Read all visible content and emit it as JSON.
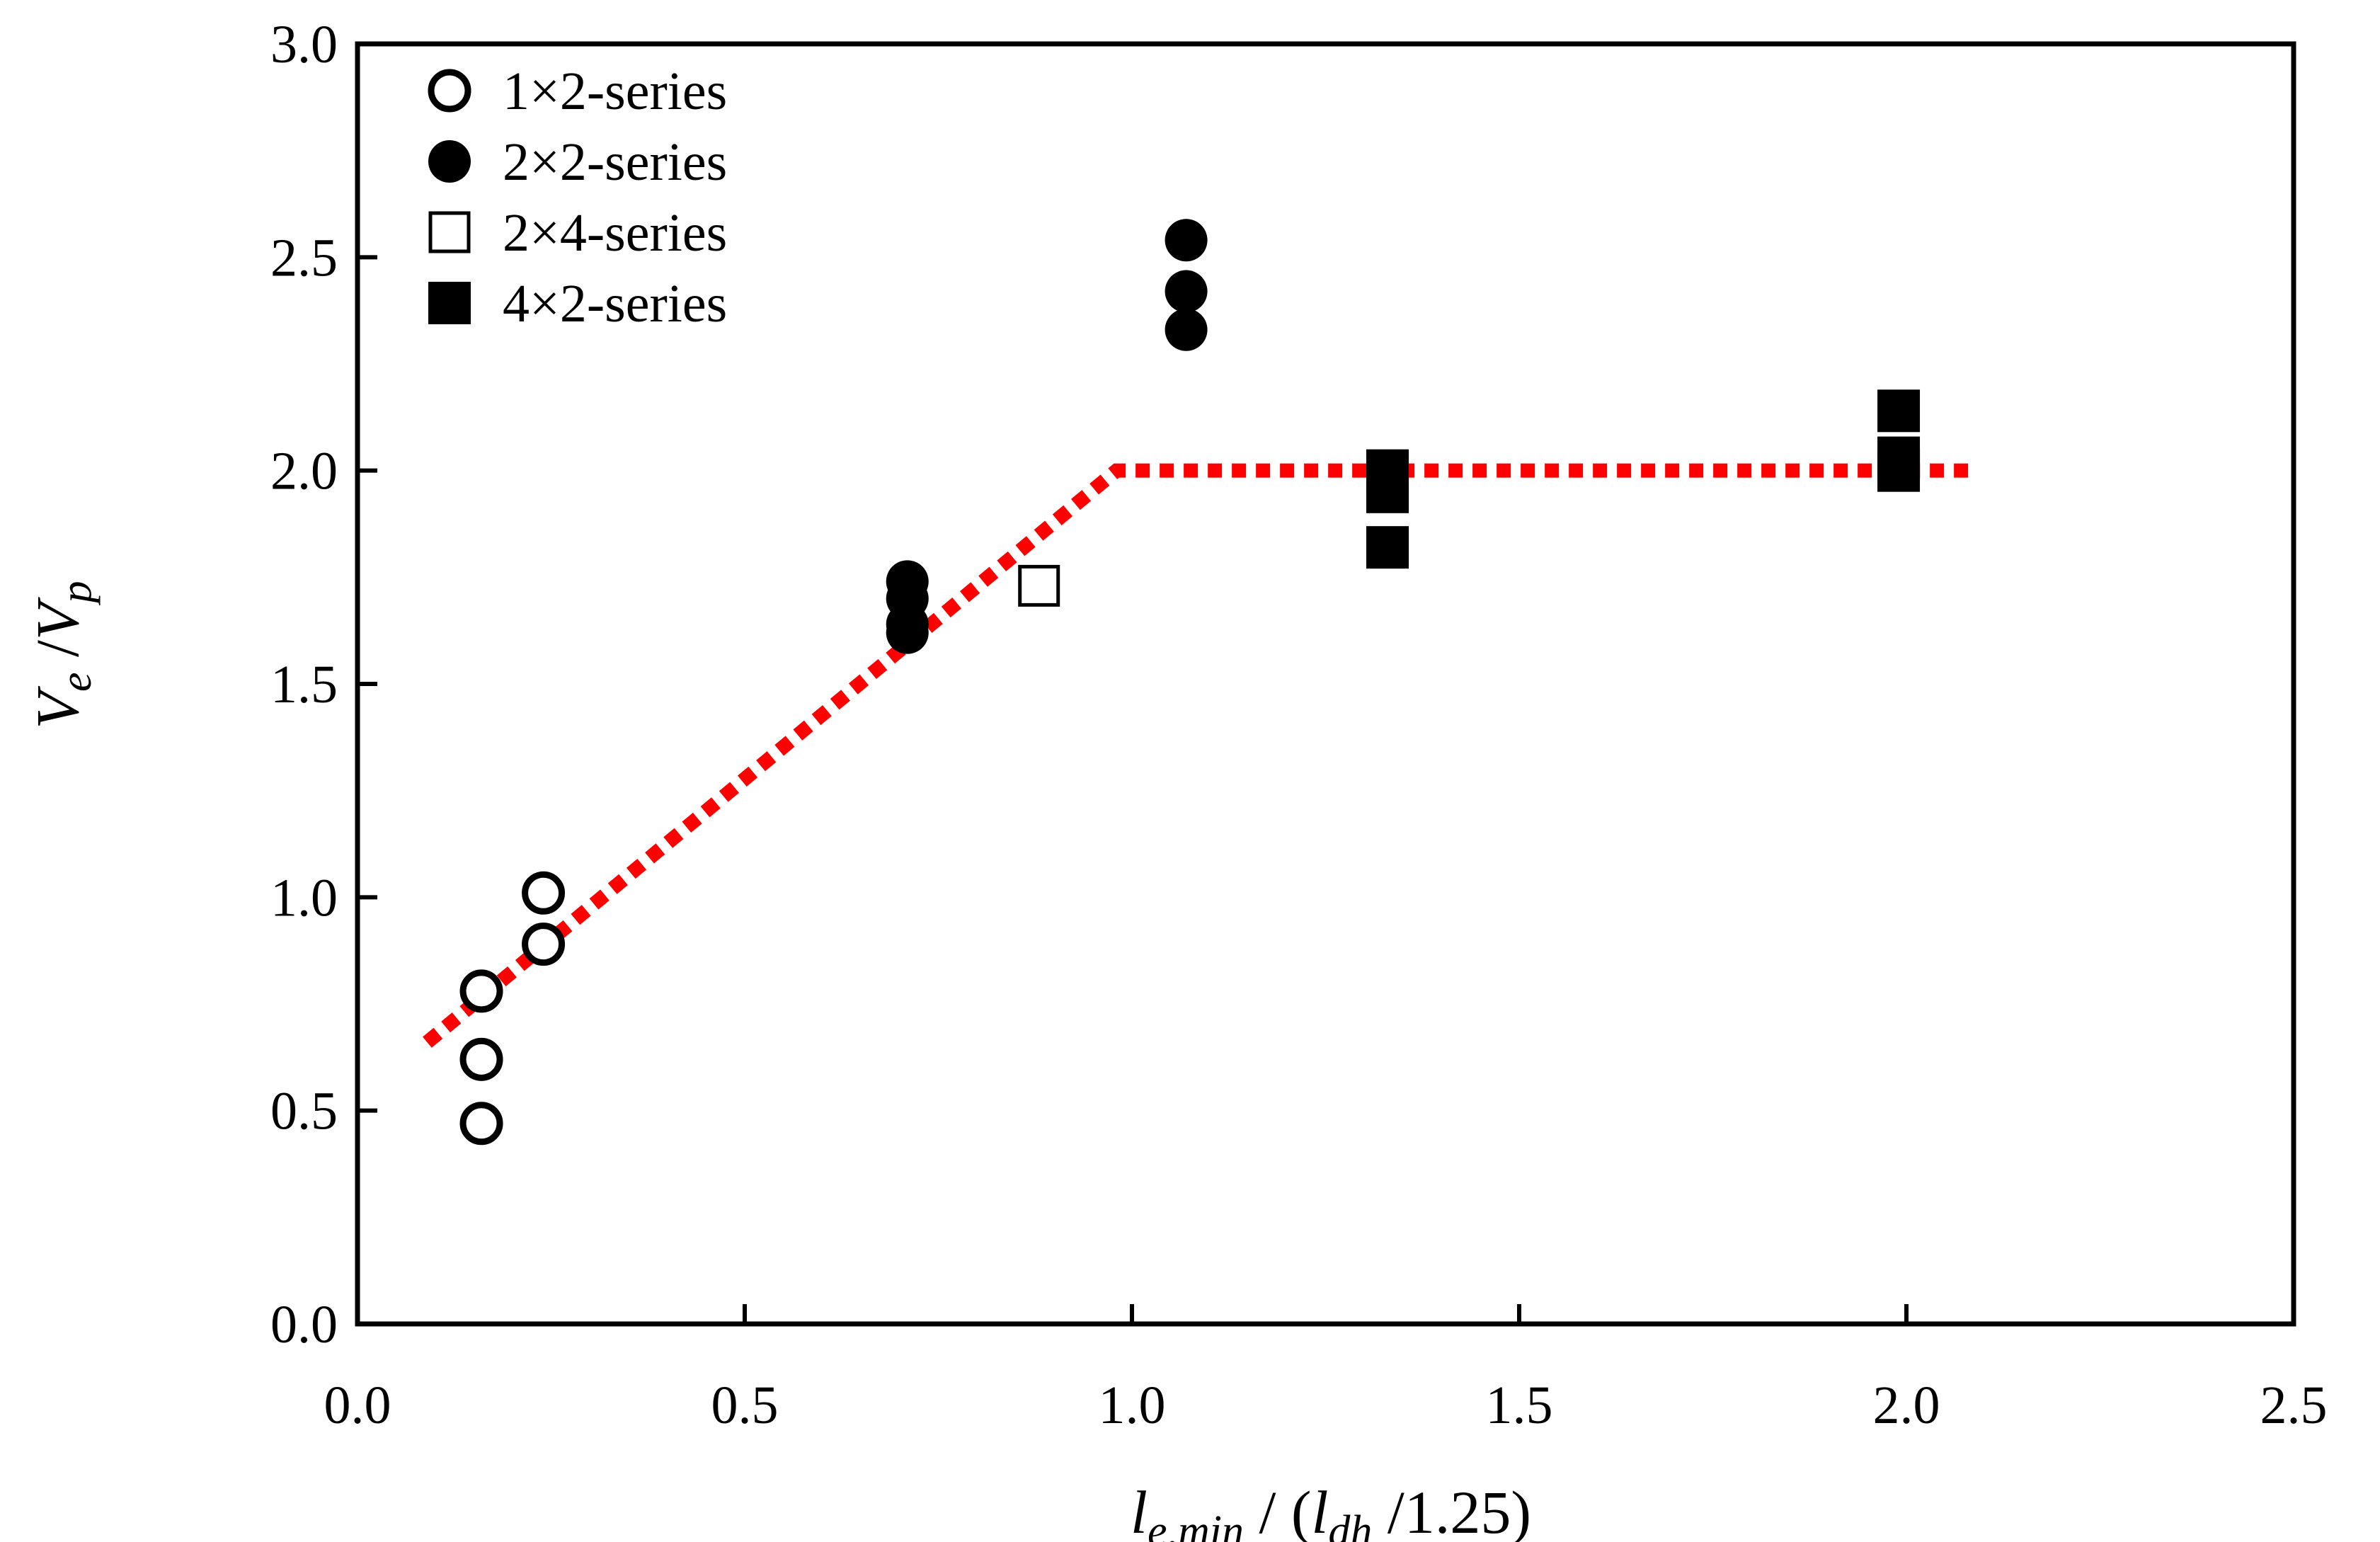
{
  "chart_data": {
    "type": "scatter",
    "xlim": [
      0.0,
      2.5
    ],
    "ylim": [
      0.0,
      3.0
    ],
    "x_ticks": [
      "0.0",
      "0.5",
      "1.0",
      "1.5",
      "2.0",
      "2.5"
    ],
    "y_ticks": [
      "0.0",
      "0.5",
      "1.0",
      "1.5",
      "2.0",
      "2.5",
      "3.0"
    ],
    "xlabel": {
      "base": "l",
      "sub": "e,min",
      "mid": " / (",
      "base2": "l",
      "sub2": "dh",
      "tail": " /1.25)"
    },
    "ylabel": {
      "base": "V",
      "sub": "e",
      "mid": " /",
      "base2": "V",
      "sub2": "p"
    },
    "grid": false,
    "legend_position": "top-left",
    "series": [
      {
        "name": "1×2-series",
        "marker": "open-circle",
        "points": [
          [
            0.16,
            0.78
          ],
          [
            0.16,
            0.62
          ],
          [
            0.16,
            0.47
          ],
          [
            0.24,
            1.01
          ],
          [
            0.24,
            0.89
          ]
        ]
      },
      {
        "name": "2×2-series",
        "marker": "filled-circle",
        "points": [
          [
            0.71,
            1.74
          ],
          [
            0.71,
            1.7
          ],
          [
            0.71,
            1.64
          ],
          [
            0.71,
            1.62
          ],
          [
            1.07,
            2.54
          ],
          [
            1.07,
            2.42
          ],
          [
            1.07,
            2.33
          ]
        ]
      },
      {
        "name": "2×4-series",
        "marker": "open-square",
        "points": [
          [
            0.88,
            1.73
          ]
        ]
      },
      {
        "name": "4×2-series",
        "marker": "filled-square",
        "points": [
          [
            1.33,
            2.0
          ],
          [
            1.33,
            1.95
          ],
          [
            1.33,
            1.82
          ],
          [
            1.99,
            2.14
          ],
          [
            1.99,
            2.03
          ],
          [
            1.99,
            2.0
          ]
        ]
      }
    ],
    "trend_line": {
      "style": "dotted",
      "color": "#ff0000",
      "points": [
        [
          0.09,
          0.66
        ],
        [
          0.98,
          2.0
        ],
        [
          2.08,
          2.0
        ]
      ]
    }
  }
}
